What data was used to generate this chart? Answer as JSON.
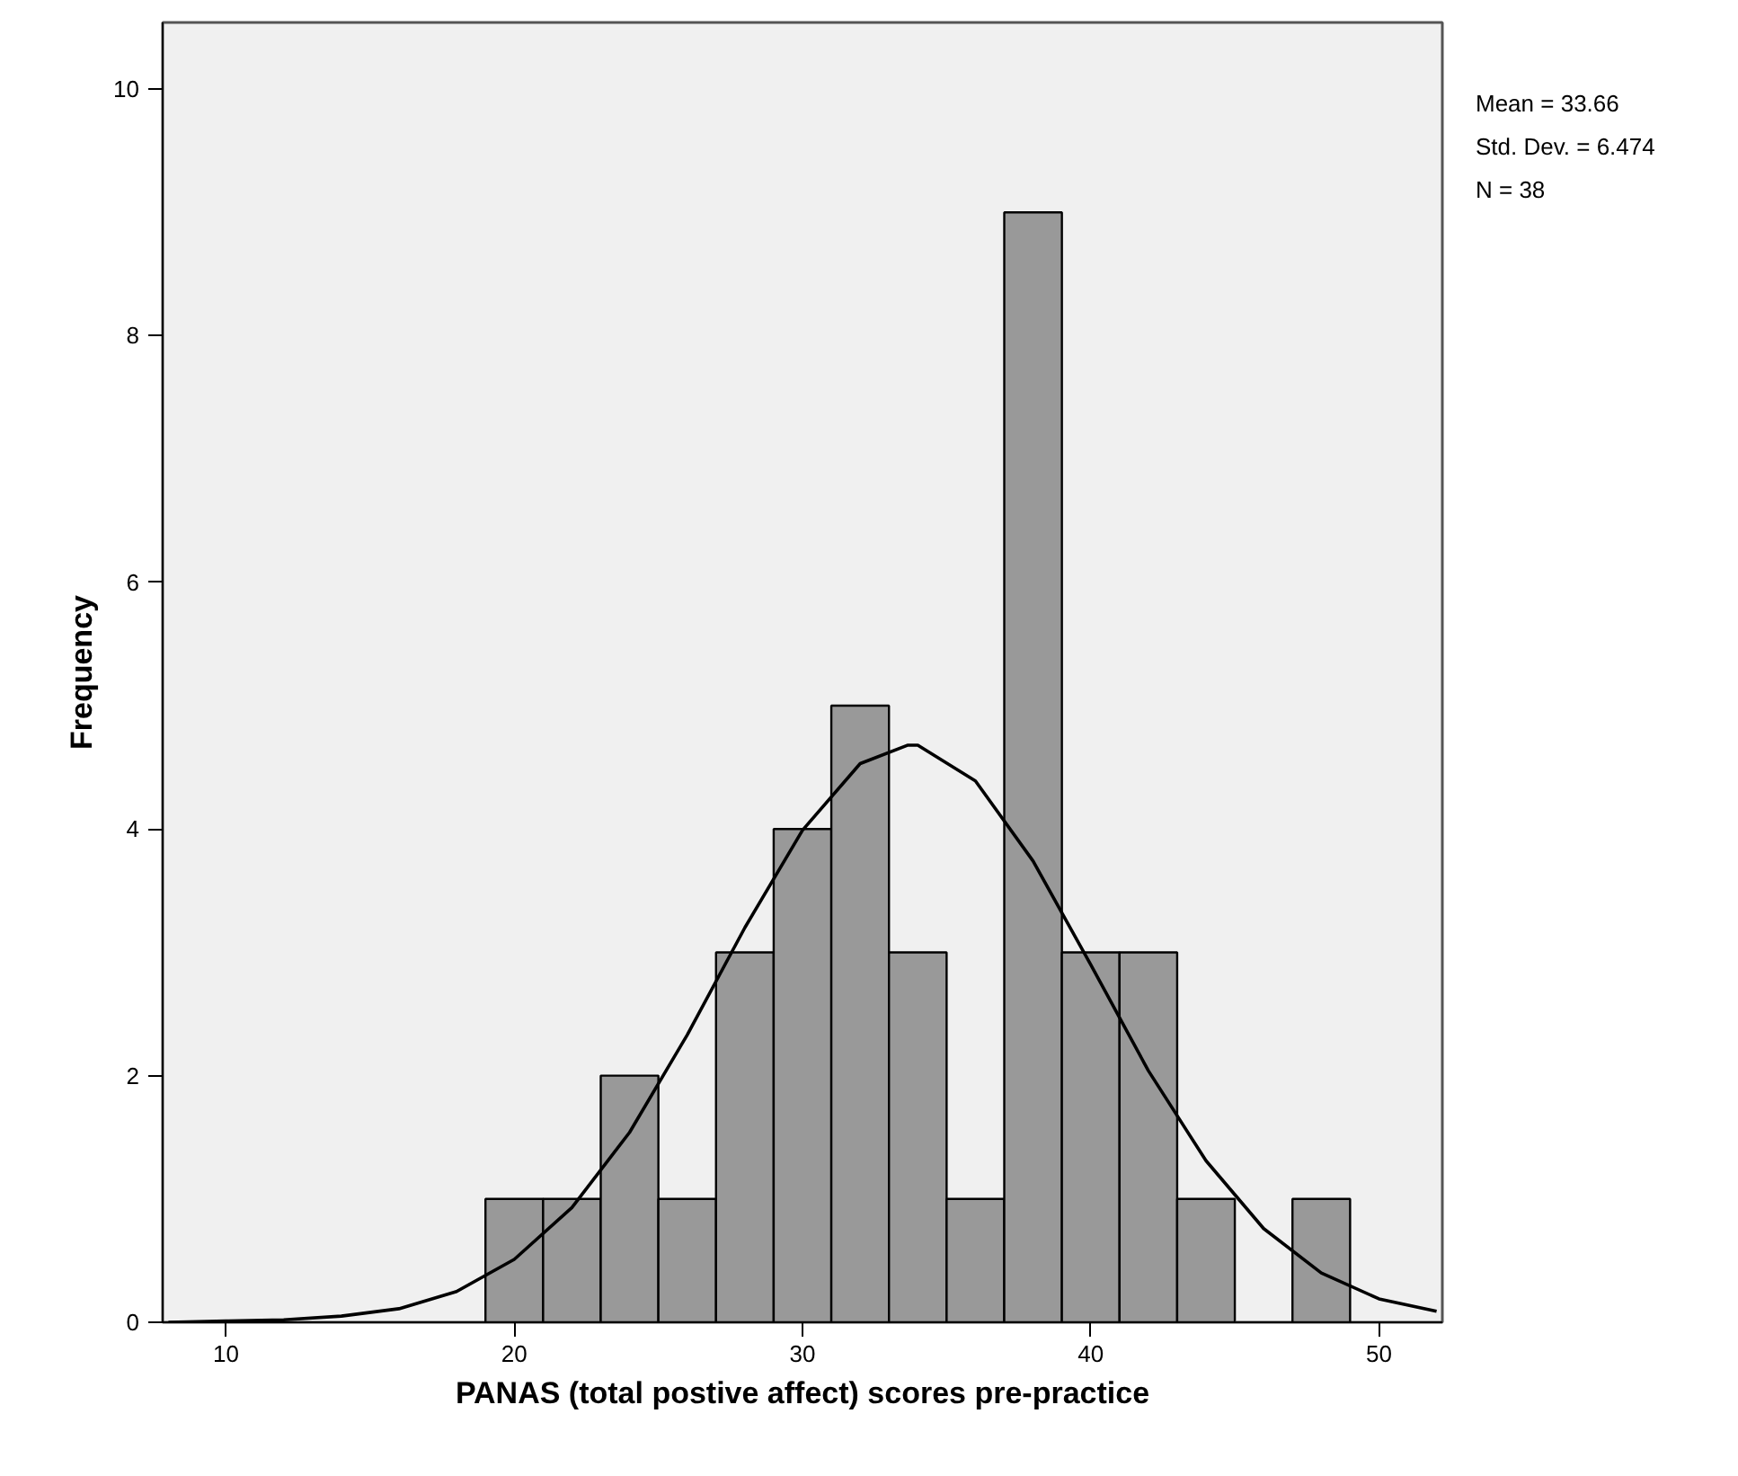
{
  "chart_data": {
    "type": "histogram",
    "xlabel": "PANAS (total postive affect) scores pre-practice",
    "ylabel": "Frequency",
    "bins": [
      19,
      21,
      23,
      25,
      27,
      29,
      31,
      33,
      35,
      37,
      39,
      41,
      43,
      45,
      47,
      49
    ],
    "values": [
      1,
      1,
      2,
      1,
      3,
      4,
      5,
      3,
      1,
      9,
      3,
      3,
      1,
      0,
      1
    ],
    "color": "#999999",
    "series": [
      {
        "type": "line",
        "color": "#000000",
        "x": [
          8,
          10,
          12,
          14,
          16,
          18,
          20,
          22,
          24,
          26,
          28,
          30,
          32,
          33.66,
          34,
          36,
          38,
          40,
          42,
          44,
          46,
          48,
          50,
          52
        ],
        "values": [
          0,
          0.01,
          0.02,
          0.05,
          0.11,
          0.25,
          0.51,
          0.93,
          1.54,
          2.33,
          3.2,
          3.99,
          4.53,
          4.68,
          4.68,
          4.39,
          3.74,
          2.9,
          2.04,
          1.31,
          0.76,
          0.4,
          0.19,
          0.09
        ]
      }
    ],
    "xlim": [
      7.8,
      52.2
    ],
    "xticks": [
      10,
      20,
      30,
      40,
      50
    ],
    "ylim": [
      0,
      10.54
    ],
    "yticks": [
      0,
      2,
      4,
      6,
      8,
      10
    ],
    "grid": false,
    "annotations": [
      "Mean = 33.66",
      "Std. Dev. = 6.474",
      "N = 38"
    ]
  }
}
